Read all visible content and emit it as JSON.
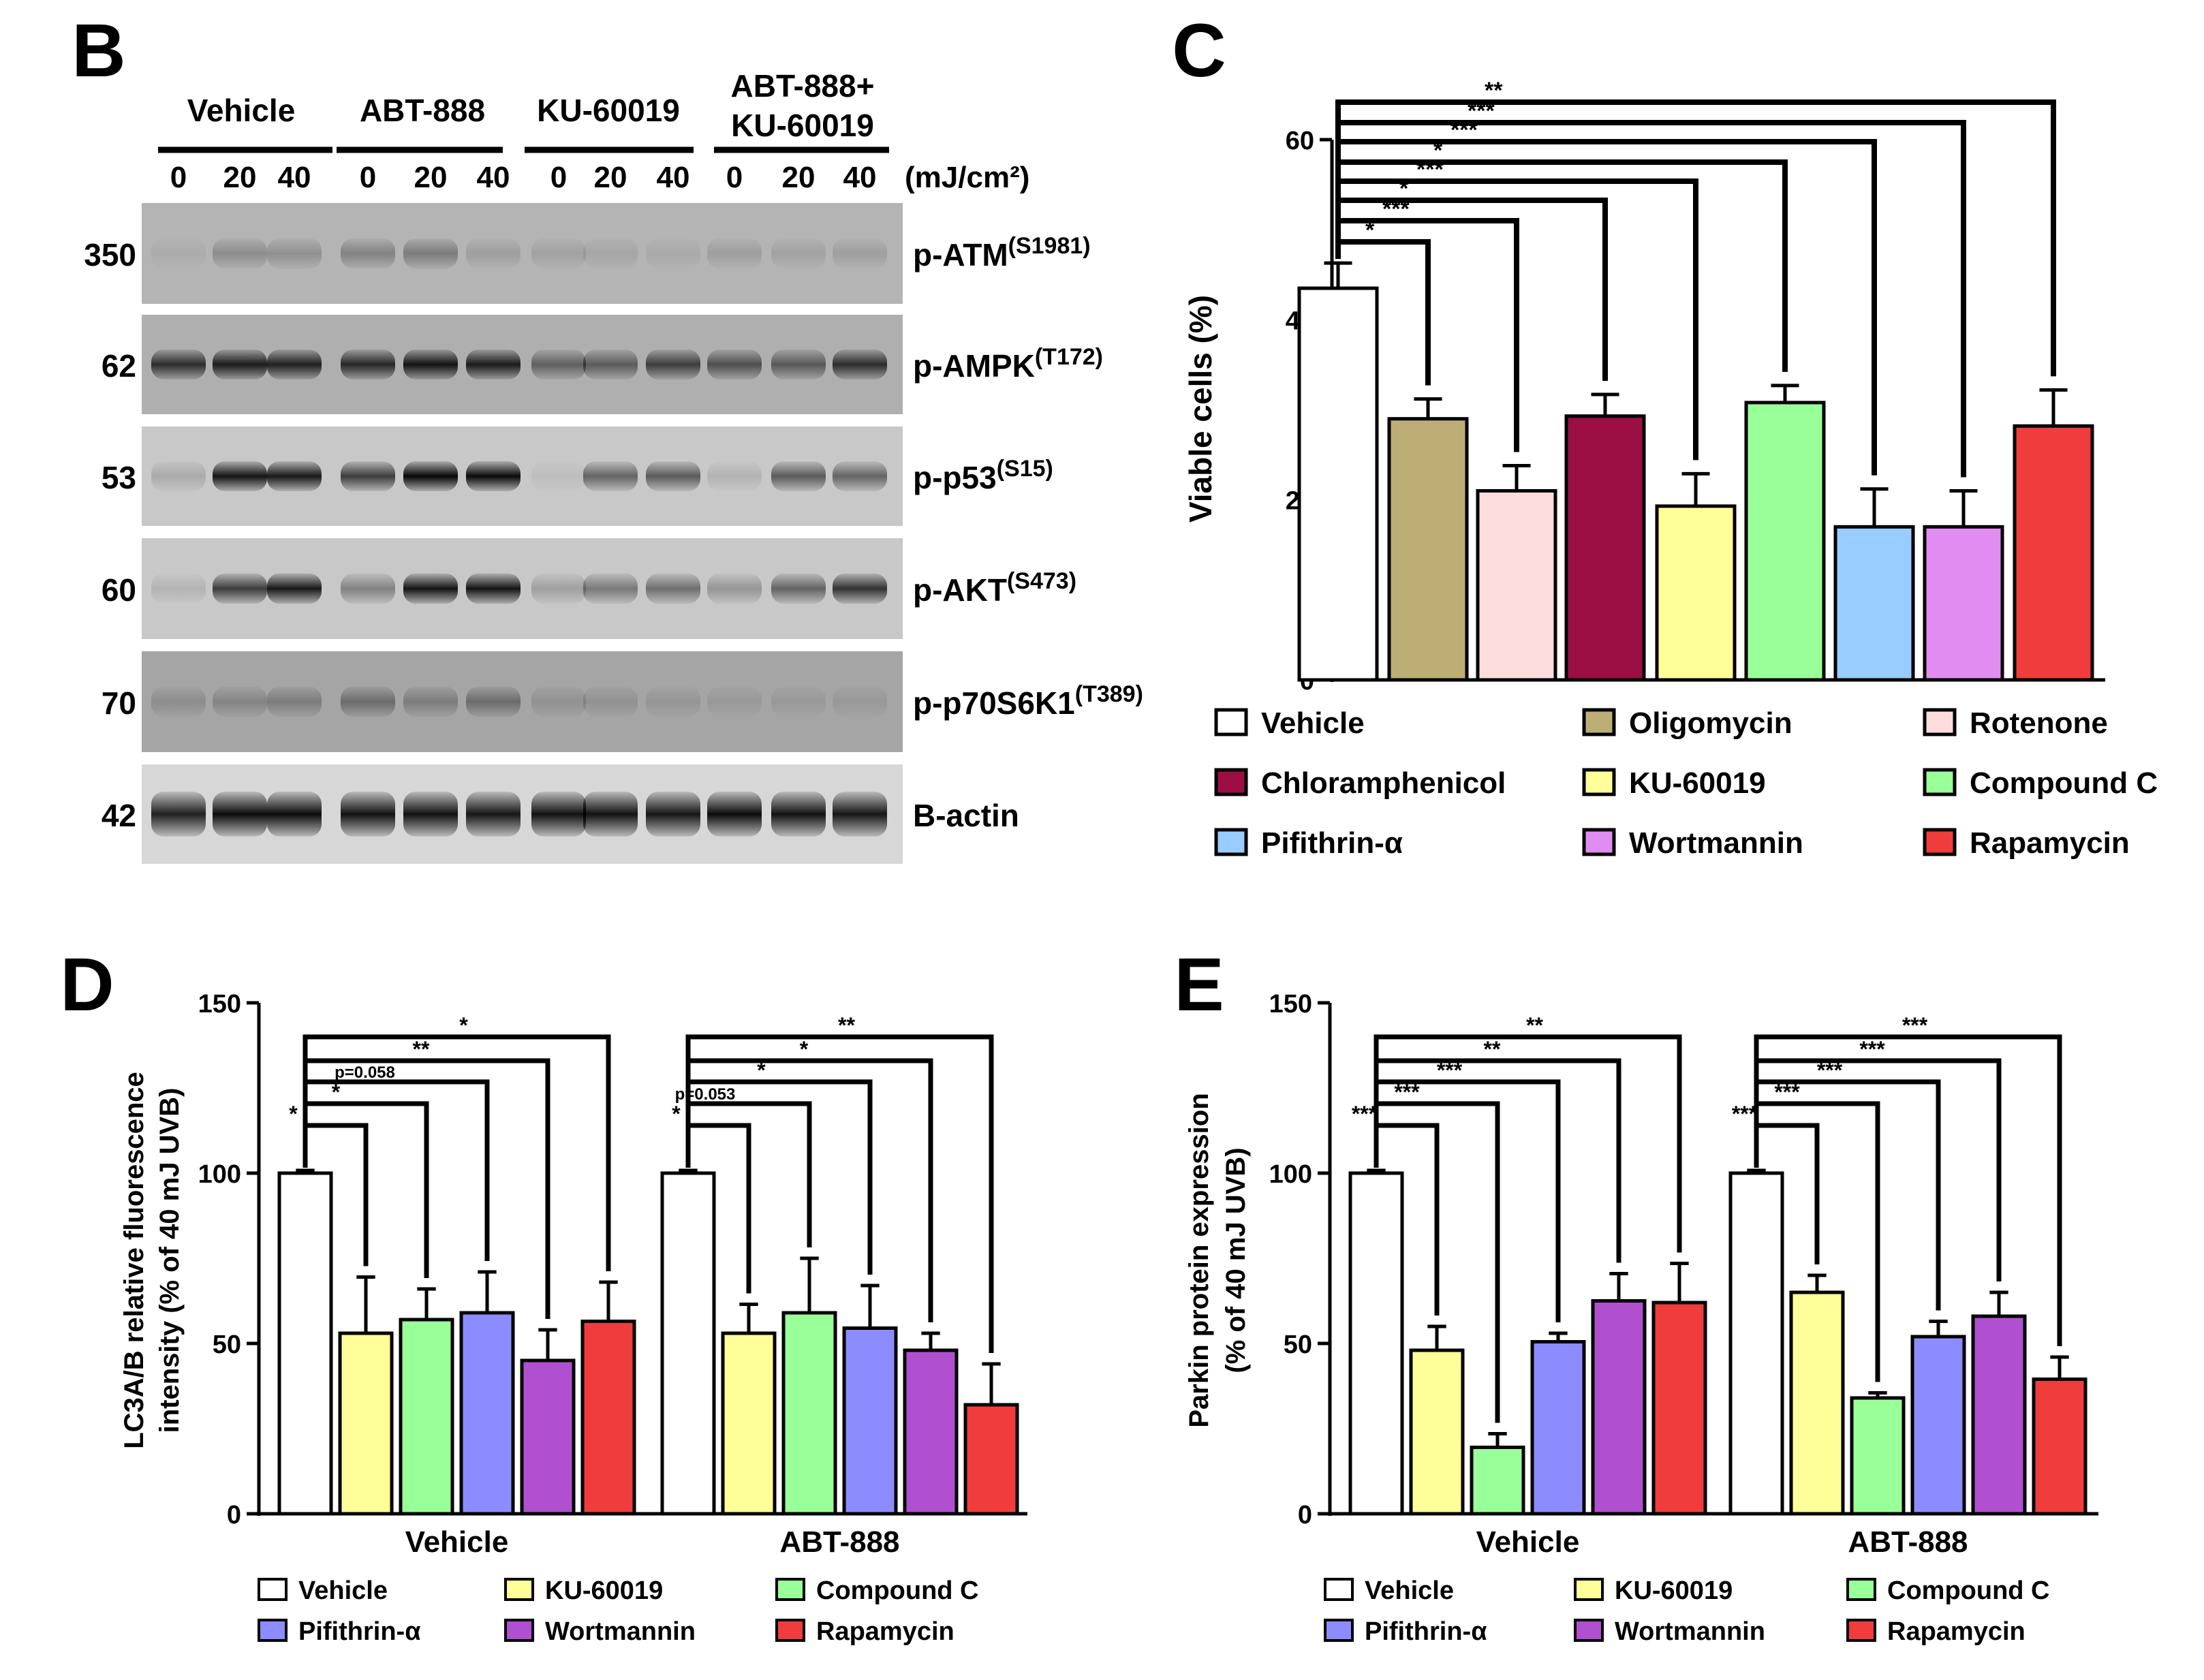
{
  "figure": {
    "panel_b": {
      "letter": "B",
      "groups": [
        "Vehicle",
        "ABT-888",
        "KU-60019",
        "ABT-888+",
        "KU-60019"
      ],
      "doses": [
        "0",
        "20",
        "40",
        "0",
        "20",
        "40",
        "0",
        "20",
        "40",
        "0",
        "20",
        "40"
      ],
      "unit": "(mJ/cm²)",
      "blots": [
        {
          "mw": "350",
          "name": "p-ATM",
          "site": "(S1981)"
        },
        {
          "mw": "62",
          "name": "p-AMPK",
          "site": "(T172)"
        },
        {
          "mw": "53",
          "name": "p-p53",
          "site": "(S15)"
        },
        {
          "mw": "60",
          "name": "p-AKT",
          "site": "(S473)"
        },
        {
          "mw": "70",
          "name": "p-p70S6K1",
          "site": "(T389)"
        },
        {
          "mw": "42",
          "name": "B-actin",
          "site": ""
        }
      ],
      "band_intensity": [
        [
          0.05,
          0.22,
          0.2,
          0.28,
          0.32,
          0.12,
          0.1,
          0.08,
          0.06,
          0.12,
          0.1,
          0.12
        ],
        [
          0.75,
          0.85,
          0.82,
          0.78,
          0.9,
          0.85,
          0.45,
          0.48,
          0.65,
          0.55,
          0.5,
          0.75
        ],
        [
          0.15,
          0.9,
          0.88,
          0.7,
          0.97,
          0.95,
          0.05,
          0.5,
          0.55,
          0.1,
          0.55,
          0.5
        ],
        [
          0.1,
          0.7,
          0.88,
          0.35,
          0.9,
          0.9,
          0.2,
          0.4,
          0.45,
          0.25,
          0.5,
          0.75
        ],
        [
          0.15,
          0.2,
          0.25,
          0.35,
          0.25,
          0.35,
          0.12,
          0.12,
          0.1,
          0.08,
          0.08,
          0.08
        ],
        [
          0.85,
          0.95,
          0.95,
          0.92,
          0.92,
          0.9,
          0.92,
          0.92,
          0.9,
          0.95,
          0.92,
          0.9
        ]
      ]
    },
    "colors": {
      "Vehicle": "#FFFFFF",
      "Oligomycin": "#BCAE74",
      "Rotenone": "#FDDCDE",
      "Chloramphenicol": "#9B0F45",
      "KU-60019": "#FFFF99",
      "Compound C": "#99FF99",
      "Pifithrin-α": "#99CCFF",
      "Pifithrin-α (D/E)": "#8C8CFF",
      "Wortmannin": "#E08CF0",
      "Wortmannin (D/E)": "#B050D0",
      "Rapamycin": "#F03C3C"
    }
  },
  "chart_data": [
    {
      "panel": "C",
      "type": "bar",
      "ylabel": "Viable cells (%)",
      "ylim": [
        0,
        60
      ],
      "yticks": [
        "0",
        "20",
        "40",
        "60"
      ],
      "categories": [
        "Vehicle",
        "Oligomycin",
        "Rotenone",
        "Chloramphenicol",
        "KU-60019",
        "Compound C",
        "Pifithrin-α",
        "Wortmannin",
        "Rapamycin"
      ],
      "values": [
        43.5,
        29,
        21,
        29.3,
        19.3,
        30.8,
        17,
        17,
        28.2
      ],
      "errors": [
        2.8,
        2.2,
        2.8,
        2.4,
        3.6,
        1.9,
        4.2,
        4,
        4
      ],
      "significance": [
        {
          "compare": [
            0,
            1
          ],
          "label": "*"
        },
        {
          "compare": [
            0,
            2
          ],
          "label": "***"
        },
        {
          "compare": [
            0,
            3
          ],
          "label": "*"
        },
        {
          "compare": [
            0,
            4
          ],
          "label": "***"
        },
        {
          "compare": [
            0,
            5
          ],
          "label": "*"
        },
        {
          "compare": [
            0,
            6
          ],
          "label": "***"
        },
        {
          "compare": [
            0,
            7
          ],
          "label": "***"
        },
        {
          "compare": [
            0,
            8
          ],
          "label": "**"
        }
      ],
      "legend": [
        "Vehicle",
        "Oligomycin",
        "Rotenone",
        "Chloramphenicol",
        "KU-60019",
        "Compound C",
        "Pifithrin-α",
        "Wortmannin",
        "Rapamycin"
      ]
    },
    {
      "panel": "D",
      "type": "bar",
      "ylabel": [
        "LC3A/B relative fluorescence",
        "intensity (% of 40 mJ UVB)"
      ],
      "ylim": [
        0,
        150
      ],
      "yticks": [
        "0",
        "50",
        "100",
        "150"
      ],
      "groups": [
        "Vehicle",
        "ABT-888"
      ],
      "series": [
        {
          "name": "Vehicle",
          "values": [
            100,
            100
          ],
          "errors": [
            0.8,
            0.8
          ]
        },
        {
          "name": "KU-60019",
          "values": [
            53,
            53
          ],
          "errors": [
            16.5,
            8.5
          ]
        },
        {
          "name": "Compound C",
          "values": [
            57,
            59
          ],
          "errors": [
            9,
            16
          ]
        },
        {
          "name": "Pifithrin-α",
          "values": [
            59,
            54.5
          ],
          "errors": [
            12,
            12.5
          ]
        },
        {
          "name": "Wortmannin",
          "values": [
            45,
            48
          ],
          "errors": [
            9,
            5
          ]
        },
        {
          "name": "Rapamycin",
          "values": [
            56.5,
            32
          ],
          "errors": [
            11.5,
            12
          ]
        }
      ],
      "significance": [
        [
          {
            "label": "*"
          },
          {
            "label": "*"
          },
          {
            "label": "p=0.058"
          },
          {
            "label": "**"
          },
          {
            "label": "*"
          }
        ],
        [
          {
            "label": "*"
          },
          {
            "label": "p=0.053"
          },
          {
            "label": "*"
          },
          {
            "label": "*"
          },
          {
            "label": "**"
          }
        ]
      ],
      "legend": [
        "Vehicle",
        "KU-60019",
        "Compound C",
        "Pifithrin-α",
        "Wortmannin",
        "Rapamycin"
      ]
    },
    {
      "panel": "E",
      "type": "bar",
      "ylabel": [
        "Parkin protein expression",
        "(% of 40 mJ UVB)"
      ],
      "ylim": [
        0,
        150
      ],
      "yticks": [
        "0",
        "50",
        "100",
        "150"
      ],
      "groups": [
        "Vehicle",
        "ABT-888"
      ],
      "series": [
        {
          "name": "Vehicle",
          "values": [
            100,
            100
          ],
          "errors": [
            0.8,
            0.8
          ]
        },
        {
          "name": "KU-60019",
          "values": [
            48,
            65
          ],
          "errors": [
            7,
            5
          ]
        },
        {
          "name": "Compound C",
          "values": [
            19.5,
            34
          ],
          "errors": [
            4,
            1.5
          ]
        },
        {
          "name": "Pifithrin-α",
          "values": [
            50.5,
            52
          ],
          "errors": [
            2.5,
            4.5
          ]
        },
        {
          "name": "Wortmannin",
          "values": [
            62.5,
            58
          ],
          "errors": [
            8,
            7
          ]
        },
        {
          "name": "Rapamycin",
          "values": [
            62,
            39.5
          ],
          "errors": [
            11.5,
            6.5
          ]
        }
      ],
      "significance": [
        [
          {
            "label": "***"
          },
          {
            "label": "***"
          },
          {
            "label": "***"
          },
          {
            "label": "**"
          },
          {
            "label": "**"
          }
        ],
        [
          {
            "label": "***"
          },
          {
            "label": "***"
          },
          {
            "label": "***"
          },
          {
            "label": "***"
          },
          {
            "label": "***"
          }
        ]
      ],
      "legend": [
        "Vehicle",
        "KU-60019",
        "Compound C",
        "Pifithrin-α",
        "Wortmannin",
        "Rapamycin"
      ]
    }
  ]
}
